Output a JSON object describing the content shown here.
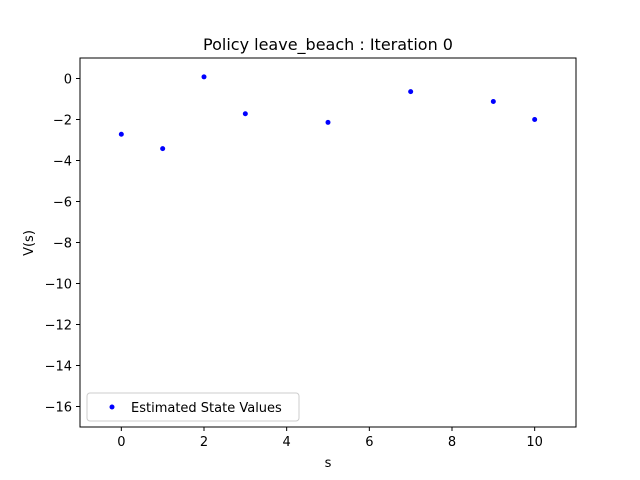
{
  "chart_data": {
    "type": "scatter",
    "title": "Policy leave_beach : Iteration 0",
    "xlabel": "s",
    "ylabel": "V(s)",
    "xlim": [
      -1,
      11
    ],
    "ylim": [
      -17,
      1
    ],
    "xticks": [
      0,
      2,
      4,
      6,
      8,
      10
    ],
    "yticks": [
      0,
      -2,
      -4,
      -6,
      -8,
      -10,
      -12,
      -14,
      -16
    ],
    "xtick_labels": [
      "0",
      "2",
      "4",
      "6",
      "8",
      "10"
    ],
    "ytick_labels": [
      "0",
      "−2",
      "−4",
      "−6",
      "−8",
      "−10",
      "−12",
      "−14",
      "−16"
    ],
    "grid": false,
    "legend_position": "lower-left",
    "series": [
      {
        "name": "Estimated State Values",
        "color": "#0000ff",
        "marker": "point",
        "x": [
          0,
          1,
          2,
          3,
          5,
          7,
          9,
          10
        ],
        "y": [
          -2.72,
          -3.42,
          0.08,
          -1.72,
          -2.14,
          -0.64,
          -1.12,
          -2.0
        ]
      }
    ]
  }
}
